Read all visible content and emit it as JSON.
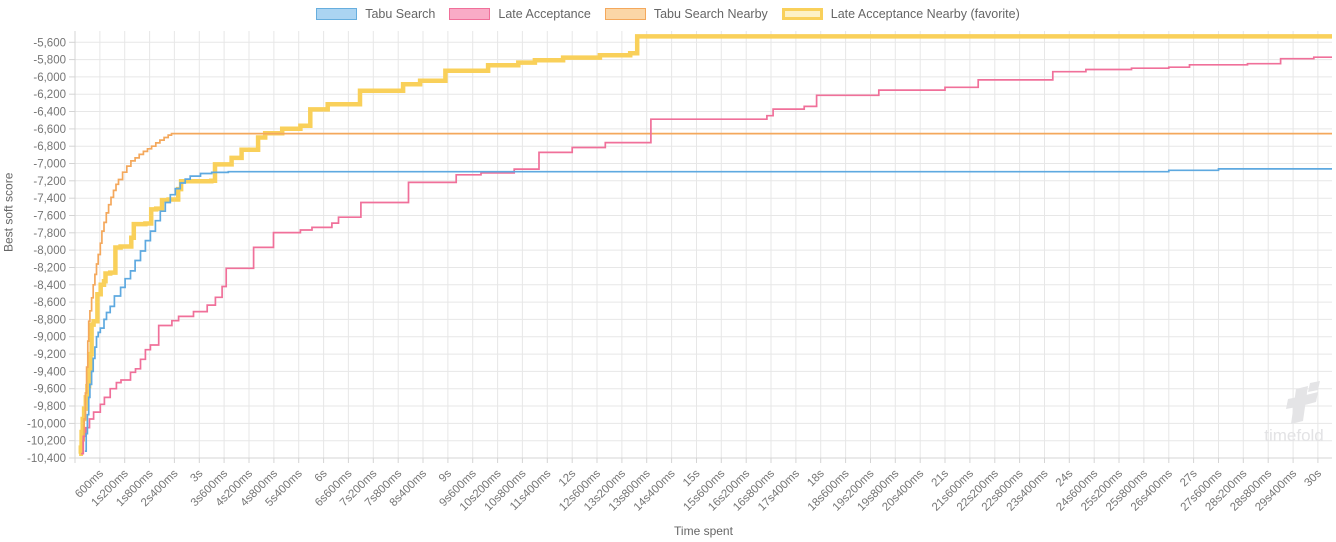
{
  "legend": {
    "items": [
      {
        "label": "Tabu Search",
        "slug": "tabu-search",
        "fill": "#abd4f2",
        "border": "#67aede",
        "border_width": 1.5
      },
      {
        "label": "Late Acceptance",
        "slug": "late-acceptance",
        "fill": "#f9abc6",
        "border": "#f0709a",
        "border_width": 1.5
      },
      {
        "label": "Tabu Search Nearby",
        "slug": "tabu-search-nearby",
        "fill": "#fbd6a6",
        "border": "#f4a85c",
        "border_width": 1.5
      },
      {
        "label": "Late Acceptance Nearby (favorite)",
        "slug": "late-acceptance-nearby-favorite",
        "fill": "#fdf1c5",
        "border": "#f9d05a",
        "border_width": 3
      }
    ]
  },
  "watermark": {
    "text": "timefold"
  },
  "chart_data": {
    "type": "line",
    "stepped": true,
    "title": "",
    "xlabel": "Time spent",
    "ylabel": "Best soft score",
    "x_unit": "ms",
    "xlim_ms": [
      0,
      30340
    ],
    "ylim": [
      -10400,
      -5470
    ],
    "grid": true,
    "legend_position": "top",
    "x_ticks_ms": [
      600,
      1200,
      1800,
      2400,
      3000,
      3600,
      4200,
      4800,
      5400,
      6000,
      6600,
      7200,
      7800,
      8400,
      9000,
      9600,
      10200,
      10800,
      11400,
      12000,
      12600,
      13200,
      13800,
      14400,
      15000,
      15600,
      16200,
      16800,
      17400,
      18000,
      18600,
      19200,
      19800,
      20400,
      21000,
      21600,
      22200,
      22800,
      23400,
      24000,
      24600,
      25200,
      25800,
      26400,
      27000,
      27600,
      28200,
      28800,
      29400,
      30000
    ],
    "x_tick_labels": [
      "600ms",
      "1s200ms",
      "1s800ms",
      "2s400ms",
      "3s",
      "3s600ms",
      "4s200ms",
      "4s800ms",
      "5s400ms",
      "6s",
      "6s600ms",
      "7s200ms",
      "7s800ms",
      "8s400ms",
      "9s",
      "9s600ms",
      "10s200ms",
      "10s800ms",
      "11s400ms",
      "12s",
      "12s600ms",
      "13s200ms",
      "13s800ms",
      "14s400ms",
      "15s",
      "15s600ms",
      "16s200ms",
      "16s800ms",
      "17s400ms",
      "18s",
      "18s600ms",
      "19s200ms",
      "19s800ms",
      "20s400ms",
      "21s",
      "21s600ms",
      "22s200ms",
      "22s800ms",
      "23s400ms",
      "24s",
      "24s600ms",
      "25s200ms",
      "25s800ms",
      "26s400ms",
      "27s",
      "27s600ms",
      "28s200ms",
      "28s800ms",
      "29s400ms",
      "30s"
    ],
    "y_tick_values": [
      -5600,
      -5800,
      -6000,
      -6200,
      -6400,
      -6600,
      -6800,
      -7000,
      -7200,
      -7400,
      -7600,
      -7800,
      -8000,
      -8200,
      -8400,
      -8600,
      -8800,
      -9000,
      -9200,
      -9400,
      -9600,
      -9800,
      -10000,
      -10200,
      -10400
    ],
    "y_tick_labels": [
      "-5,600",
      "-5,800",
      "-6,000",
      "-6,200",
      "-6,400",
      "-6,600",
      "-6,800",
      "-7,000",
      "-7,200",
      "-7,400",
      "-7,600",
      "-7,800",
      "-8,000",
      "-8,200",
      "-8,400",
      "-8,600",
      "-8,800",
      "-9,000",
      "-9,200",
      "-9,400",
      "-9,600",
      "-9,800",
      "-10,000",
      "-10,200",
      "-10,400"
    ],
    "series": [
      {
        "name": "Tabu Search",
        "slug": "tabu-search",
        "color": "#5ea9e0",
        "line_width": 1.7,
        "points": [
          [
            240,
            -10320
          ],
          [
            270,
            -10120
          ],
          [
            300,
            -9900
          ],
          [
            330,
            -9700
          ],
          [
            360,
            -9550
          ],
          [
            400,
            -9400
          ],
          [
            440,
            -9250
          ],
          [
            480,
            -9120
          ],
          [
            520,
            -9000
          ],
          [
            560,
            -8950
          ],
          [
            610,
            -8900
          ],
          [
            700,
            -8800
          ],
          [
            760,
            -8720
          ],
          [
            850,
            -8650
          ],
          [
            950,
            -8530
          ],
          [
            1100,
            -8430
          ],
          [
            1210,
            -8330
          ],
          [
            1340,
            -8240
          ],
          [
            1450,
            -8120
          ],
          [
            1580,
            -8010
          ],
          [
            1700,
            -7890
          ],
          [
            1820,
            -7780
          ],
          [
            1940,
            -7660
          ],
          [
            2060,
            -7550
          ],
          [
            2180,
            -7450
          ],
          [
            2300,
            -7360
          ],
          [
            2420,
            -7290
          ],
          [
            2540,
            -7225
          ],
          [
            2660,
            -7180
          ],
          [
            2780,
            -7145
          ],
          [
            3030,
            -7115
          ],
          [
            3300,
            -7102
          ],
          [
            3700,
            -7095
          ],
          [
            26400,
            -7078
          ],
          [
            27600,
            -7062
          ],
          [
            30340,
            -7062
          ]
        ]
      },
      {
        "name": "Late Acceptance",
        "slug": "late-acceptance",
        "color": "#f0709a",
        "line_width": 1.7,
        "points": [
          [
            150,
            -10350
          ],
          [
            200,
            -10150
          ],
          [
            260,
            -10050
          ],
          [
            350,
            -9950
          ],
          [
            450,
            -9870
          ],
          [
            610,
            -9780
          ],
          [
            710,
            -9700
          ],
          [
            850,
            -9600
          ],
          [
            1000,
            -9530
          ],
          [
            1110,
            -9500
          ],
          [
            1340,
            -9410
          ],
          [
            1460,
            -9370
          ],
          [
            1580,
            -9260
          ],
          [
            1700,
            -9150
          ],
          [
            1820,
            -9095
          ],
          [
            2020,
            -8870
          ],
          [
            2340,
            -8815
          ],
          [
            2500,
            -8765
          ],
          [
            2860,
            -8710
          ],
          [
            3190,
            -8635
          ],
          [
            3390,
            -8545
          ],
          [
            3550,
            -8420
          ],
          [
            3650,
            -8210
          ],
          [
            4310,
            -7968
          ],
          [
            4790,
            -7798
          ],
          [
            5440,
            -7768
          ],
          [
            5720,
            -7738
          ],
          [
            6200,
            -7688
          ],
          [
            6360,
            -7620
          ],
          [
            6900,
            -7450
          ],
          [
            8050,
            -7218
          ],
          [
            9200,
            -7130
          ],
          [
            9800,
            -7108
          ],
          [
            10600,
            -7065
          ],
          [
            11200,
            -6872
          ],
          [
            12000,
            -6815
          ],
          [
            12800,
            -6758
          ],
          [
            13900,
            -6488
          ],
          [
            16700,
            -6448
          ],
          [
            16850,
            -6372
          ],
          [
            17600,
            -6340
          ],
          [
            17900,
            -6212
          ],
          [
            19400,
            -6152
          ],
          [
            21000,
            -6120
          ],
          [
            21800,
            -6035
          ],
          [
            23600,
            -5940
          ],
          [
            24400,
            -5915
          ],
          [
            25500,
            -5900
          ],
          [
            26400,
            -5888
          ],
          [
            26900,
            -5860
          ],
          [
            28300,
            -5848
          ],
          [
            29100,
            -5790
          ],
          [
            29900,
            -5772
          ],
          [
            30340,
            -5772
          ]
        ]
      },
      {
        "name": "Tabu Search Nearby",
        "slug": "tabu-search-nearby",
        "color": "#f4a85c",
        "line_width": 1.7,
        "points": [
          [
            150,
            -10350
          ],
          [
            190,
            -10200
          ],
          [
            220,
            -9950
          ],
          [
            250,
            -9650
          ],
          [
            280,
            -9350
          ],
          [
            310,
            -9050
          ],
          [
            330,
            -8820
          ],
          [
            360,
            -8700
          ],
          [
            400,
            -8550
          ],
          [
            440,
            -8400
          ],
          [
            480,
            -8280
          ],
          [
            520,
            -8160
          ],
          [
            560,
            -8050
          ],
          [
            610,
            -7920
          ],
          [
            650,
            -7780
          ],
          [
            700,
            -7680
          ],
          [
            755,
            -7570
          ],
          [
            810,
            -7475
          ],
          [
            870,
            -7390
          ],
          [
            930,
            -7310
          ],
          [
            990,
            -7240
          ],
          [
            1050,
            -7185
          ],
          [
            1150,
            -7100
          ],
          [
            1250,
            -7030
          ],
          [
            1350,
            -6970
          ],
          [
            1450,
            -6935
          ],
          [
            1550,
            -6895
          ],
          [
            1650,
            -6860
          ],
          [
            1750,
            -6830
          ],
          [
            1850,
            -6800
          ],
          [
            1950,
            -6762
          ],
          [
            2050,
            -6730
          ],
          [
            2150,
            -6700
          ],
          [
            2250,
            -6672
          ],
          [
            2330,
            -6655
          ],
          [
            30340,
            -6655
          ]
        ]
      },
      {
        "name": "Late Acceptance Nearby (favorite)",
        "slug": "late-acceptance-nearby-favorite",
        "color": "#f9d05a",
        "line_width": 4.5,
        "points": [
          [
            100,
            -10350
          ],
          [
            140,
            -10280
          ],
          [
            160,
            -10100
          ],
          [
            185,
            -9950
          ],
          [
            220,
            -9830
          ],
          [
            260,
            -9700
          ],
          [
            300,
            -9570
          ],
          [
            340,
            -9380
          ],
          [
            375,
            -9200
          ],
          [
            400,
            -8860
          ],
          [
            450,
            -8820
          ],
          [
            540,
            -8510
          ],
          [
            620,
            -8400
          ],
          [
            700,
            -8360
          ],
          [
            735,
            -8270
          ],
          [
            850,
            -8260
          ],
          [
            975,
            -7970
          ],
          [
            1100,
            -7958
          ],
          [
            1360,
            -7858
          ],
          [
            1420,
            -7700
          ],
          [
            1700,
            -7692
          ],
          [
            1840,
            -7530
          ],
          [
            1960,
            -7520
          ],
          [
            2100,
            -7422
          ],
          [
            2260,
            -7415
          ],
          [
            2490,
            -7295
          ],
          [
            2560,
            -7205
          ],
          [
            3290,
            -7198
          ],
          [
            3380,
            -7010
          ],
          [
            3780,
            -6935
          ],
          [
            4020,
            -6840
          ],
          [
            4420,
            -6700
          ],
          [
            4590,
            -6650
          ],
          [
            5000,
            -6598
          ],
          [
            5440,
            -6565
          ],
          [
            5680,
            -6375
          ],
          [
            6100,
            -6315
          ],
          [
            6880,
            -6160
          ],
          [
            7920,
            -6085
          ],
          [
            8330,
            -6045
          ],
          [
            8940,
            -5930
          ],
          [
            9970,
            -5865
          ],
          [
            10700,
            -5835
          ],
          [
            11100,
            -5808
          ],
          [
            11780,
            -5777
          ],
          [
            12670,
            -5750
          ],
          [
            13400,
            -5727
          ],
          [
            13570,
            -5532
          ],
          [
            30340,
            -5532
          ]
        ]
      }
    ]
  }
}
